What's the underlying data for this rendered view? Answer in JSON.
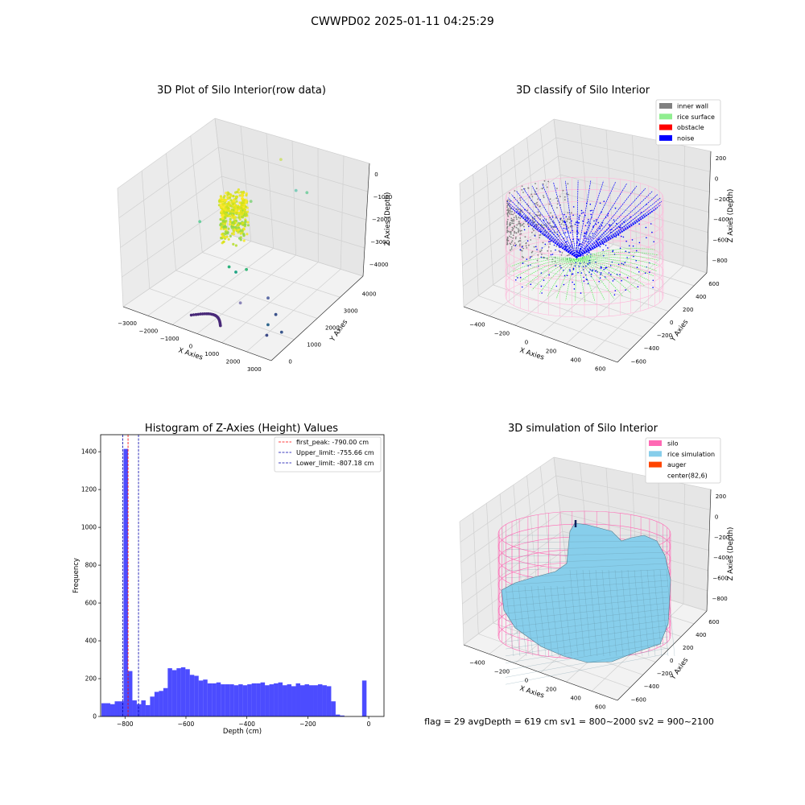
{
  "suptitle": "CWWPD02 2025-01-11 04:25:29",
  "footer": "flag = 29  avgDepth = 619 cm  sv1 = 800~2000  sv2 = 900~2100",
  "chart_data": [
    {
      "type": "scatter",
      "projection": "3d",
      "title": "3D Plot of Silo Interior(row data)",
      "xlabel": "X Axies",
      "ylabel": "Y Axies",
      "zlabel": "Z Axies (Depth)",
      "x_ticks": [
        "−3000",
        "−2000",
        "−1000",
        "0",
        "1000",
        "2000",
        "3000"
      ],
      "y_ticks": [
        "0",
        "1000",
        "2000",
        "3000",
        "4000"
      ],
      "z_ticks": [
        "−4000",
        "−3000",
        "−2000",
        "−1000",
        "0"
      ],
      "xlim": [
        -3300,
        3300
      ],
      "ylim": [
        -600,
        4600
      ],
      "zlim": [
        -4500,
        300
      ],
      "grid": true,
      "colormap": "viridis",
      "main_cluster": {
        "x": [
          -2000,
          -1000
        ],
        "y": [
          2500,
          3500
        ],
        "z": [
          -3200,
          -1500
        ],
        "color": "yellow-green"
      },
      "points": [
        {
          "x": -200,
          "y": 4000,
          "z": -100,
          "color": "#d0e07a"
        },
        {
          "x": 800,
          "y": 3600,
          "z": -800,
          "color": "#7fcdbb"
        },
        {
          "x": 1100,
          "y": 3800,
          "z": -900,
          "color": "#7fd0a5"
        },
        {
          "x": -2300,
          "y": 2200,
          "z": -2300,
          "color": "#6bcf9e"
        },
        {
          "x": -700,
          "y": 3000,
          "z": -1400,
          "color": "#8fd68a"
        },
        {
          "x": -500,
          "y": 1600,
          "z": -3200,
          "color": "#2db27d"
        },
        {
          "x": -300,
          "y": 1700,
          "z": -3400,
          "color": "#21a585"
        },
        {
          "x": -100,
          "y": 2000,
          "z": -3400,
          "color": "#3ab97a"
        },
        {
          "x": 1200,
          "y": 1600,
          "z": -3900,
          "color": "#5f6ea6"
        },
        {
          "x": 600,
          "y": 900,
          "z": -3900,
          "color": "#8b85b8"
        },
        {
          "x": 1800,
          "y": 1300,
          "z": -4200,
          "color": "#3b528b"
        },
        {
          "x": 1900,
          "y": 800,
          "z": -4300,
          "color": "#31688e"
        },
        {
          "x": 2500,
          "y": 800,
          "z": -4400,
          "color": "#39568c"
        },
        {
          "x": 2200,
          "y": 400,
          "z": -4400,
          "color": "#3e4a89"
        }
      ],
      "arc_cluster": {
        "x": [
          -800,
          500
        ],
        "y": [
          0,
          500
        ],
        "z": [
          -4400,
          -4300
        ],
        "color": "#482878"
      }
    },
    {
      "type": "scatter",
      "projection": "3d",
      "title": "3D classify of Silo Interior",
      "xlabel": "X Axies",
      "ylabel": "Y Axies",
      "zlabel": "Z Axies (Depth)",
      "x_ticks": [
        "−400",
        "−200",
        "0",
        "200",
        "400",
        "600"
      ],
      "y_ticks": [
        "−600",
        "−400",
        "−200",
        "0",
        "200",
        "400",
        "600"
      ],
      "z_ticks": [
        "−800",
        "−600",
        "−400",
        "−200",
        "0",
        "200"
      ],
      "xlim": [
        -550,
        700
      ],
      "ylim": [
        -650,
        700
      ],
      "zlim": [
        -950,
        300
      ],
      "grid": true,
      "legend": {
        "position": "upper right",
        "entries": [
          {
            "label": "inner wall",
            "color": "#808080"
          },
          {
            "label": "rice surface",
            "color": "#90ee90"
          },
          {
            "label": "obstacle",
            "color": "#ff0000"
          },
          {
            "label": "noise",
            "color": "#0000ff"
          }
        ]
      },
      "silo_wireframe_color": "#ffb6d9"
    },
    {
      "type": "bar",
      "title": "Histogram of Z-Axies (Height) Values",
      "xlabel": "Depth (cm)",
      "ylabel": "Frequency",
      "xlim": [
        -880,
        50
      ],
      "ylim": [
        0,
        1490
      ],
      "x_ticks": [
        -800,
        -600,
        -400,
        -200,
        0
      ],
      "x_tick_labels": [
        "−800",
        "−600",
        "−400",
        "−200",
        "0"
      ],
      "y_ticks": [
        0,
        200,
        400,
        600,
        800,
        1000,
        1200,
        1400
      ],
      "bar_color": "#0000ff",
      "bar_alpha": 0.7,
      "bin_width": 14.5,
      "bins": [
        {
          "x": -870,
          "count": 70
        },
        {
          "x": -855.5,
          "count": 70
        },
        {
          "x": -841,
          "count": 65
        },
        {
          "x": -826.5,
          "count": 80
        },
        {
          "x": -812,
          "count": 80
        },
        {
          "x": -797.5,
          "count": 1415
        },
        {
          "x": -783,
          "count": 240
        },
        {
          "x": -768.5,
          "count": 85
        },
        {
          "x": -754,
          "count": 65
        },
        {
          "x": -739.5,
          "count": 85
        },
        {
          "x": -725,
          "count": 60
        },
        {
          "x": -710.5,
          "count": 105
        },
        {
          "x": -696,
          "count": 130
        },
        {
          "x": -681.5,
          "count": 135
        },
        {
          "x": -667,
          "count": 150
        },
        {
          "x": -652.5,
          "count": 255
        },
        {
          "x": -638,
          "count": 245
        },
        {
          "x": -623.5,
          "count": 255
        },
        {
          "x": -609,
          "count": 260
        },
        {
          "x": -594.5,
          "count": 250
        },
        {
          "x": -580,
          "count": 220
        },
        {
          "x": -565.5,
          "count": 215
        },
        {
          "x": -551,
          "count": 190
        },
        {
          "x": -536.5,
          "count": 195
        },
        {
          "x": -522,
          "count": 175
        },
        {
          "x": -507.5,
          "count": 175
        },
        {
          "x": -493,
          "count": 180
        },
        {
          "x": -478.5,
          "count": 170
        },
        {
          "x": -464,
          "count": 170
        },
        {
          "x": -449.5,
          "count": 170
        },
        {
          "x": -435,
          "count": 165
        },
        {
          "x": -420.5,
          "count": 170
        },
        {
          "x": -406,
          "count": 165
        },
        {
          "x": -391.5,
          "count": 170
        },
        {
          "x": -377,
          "count": 175
        },
        {
          "x": -362.5,
          "count": 175
        },
        {
          "x": -348,
          "count": 180
        },
        {
          "x": -333.5,
          "count": 165
        },
        {
          "x": -319,
          "count": 170
        },
        {
          "x": -304.5,
          "count": 175
        },
        {
          "x": -290,
          "count": 180
        },
        {
          "x": -275.5,
          "count": 165
        },
        {
          "x": -261,
          "count": 170
        },
        {
          "x": -246.5,
          "count": 160
        },
        {
          "x": -232,
          "count": 175
        },
        {
          "x": -217.5,
          "count": 165
        },
        {
          "x": -203,
          "count": 170
        },
        {
          "x": -188.5,
          "count": 165
        },
        {
          "x": -174,
          "count": 165
        },
        {
          "x": -159.5,
          "count": 170
        },
        {
          "x": -145,
          "count": 165
        },
        {
          "x": -130.5,
          "count": 160
        },
        {
          "x": -116,
          "count": 80
        },
        {
          "x": -101.5,
          "count": 10
        },
        {
          "x": -87,
          "count": 5
        },
        {
          "x": -14.5,
          "count": 190
        }
      ],
      "vlines": [
        {
          "label": "first_peak: -790.00 cm",
          "x": -790,
          "color": "#ff0000",
          "style": "dashed"
        },
        {
          "label": "Upper_limit: -755.66 cm",
          "x": -755.66,
          "color": "#0000aa",
          "style": "dashed"
        },
        {
          "label": "Lower_limit: -807.18 cm",
          "x": -807.18,
          "color": "#0000aa",
          "style": "dashed"
        }
      ],
      "legend": {
        "position": "upper right"
      }
    },
    {
      "type": "surface",
      "projection": "3d",
      "title": "3D simulation of Silo Interior",
      "xlabel": "X Axies",
      "ylabel": "Y Axies",
      "zlabel": "Z Axies (Depth)",
      "x_ticks": [
        "−400",
        "−200",
        "0",
        "200",
        "400",
        "600"
      ],
      "y_ticks": [
        "−600",
        "−400",
        "−200",
        "0",
        "200",
        "400",
        "600"
      ],
      "z_ticks": [
        "−800",
        "−600",
        "−400",
        "−200",
        "0",
        "200"
      ],
      "grid": true,
      "legend": {
        "position": "upper right",
        "entries": [
          {
            "label": "silo",
            "color": "#ff69b4"
          },
          {
            "label": "rice simulation",
            "color": "#87ceeb"
          },
          {
            "label": "auger",
            "color": "#ff4500"
          },
          {
            "label": "center(82,6)",
            "color": "#ffffff"
          }
        ]
      }
    }
  ]
}
